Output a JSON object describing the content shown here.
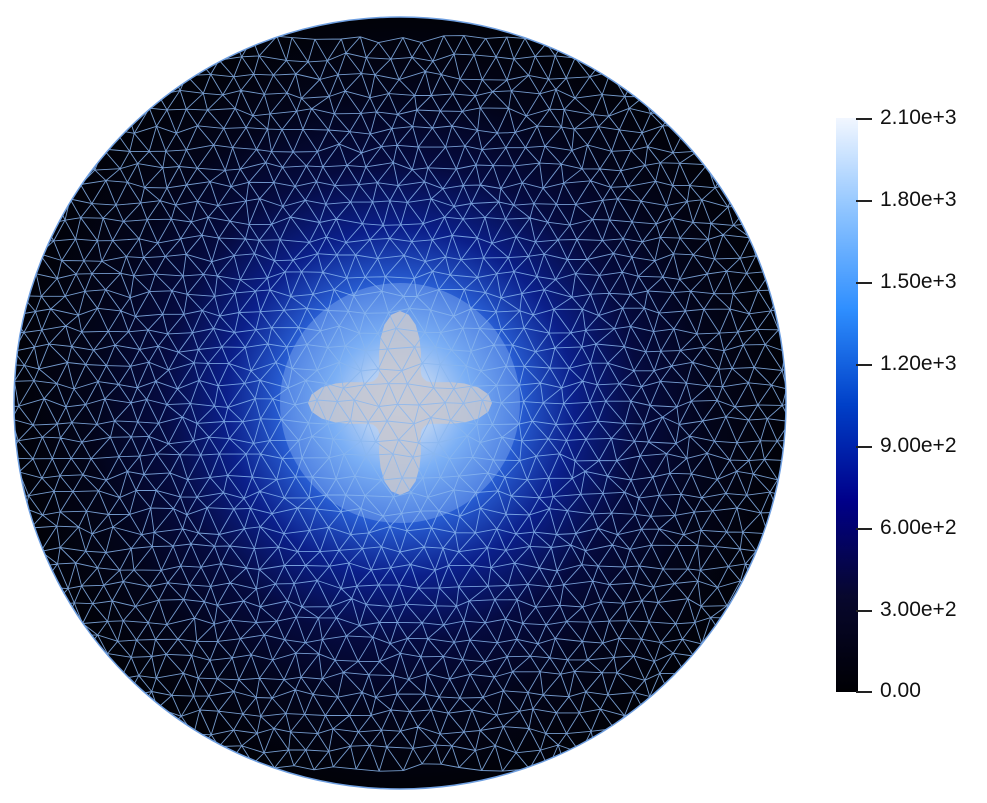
{
  "colormap": {
    "name": "blue-white",
    "stops": [
      "#000004",
      "#08082e",
      "#00008a",
      "#0040c8",
      "#2f8fff",
      "#8cc3ff",
      "#f2f7ff"
    ],
    "mesh_line_color": "#8ab6ee",
    "boundary_color": "#6f9fe0",
    "background": "#ffffff"
  },
  "field": {
    "min": 0,
    "max": 2100,
    "peak_shape": "four-pointed star",
    "peak_color": "#c7c7cf"
  },
  "colorbar": {
    "labels": [
      "2.10e+3",
      "1.80e+3",
      "1.50e+3",
      "1.20e+3",
      "9.00e+2",
      "6.00e+2",
      "3.00e+2",
      "0.00"
    ],
    "values": [
      2100,
      1800,
      1500,
      1200,
      900,
      600,
      300,
      0
    ]
  }
}
